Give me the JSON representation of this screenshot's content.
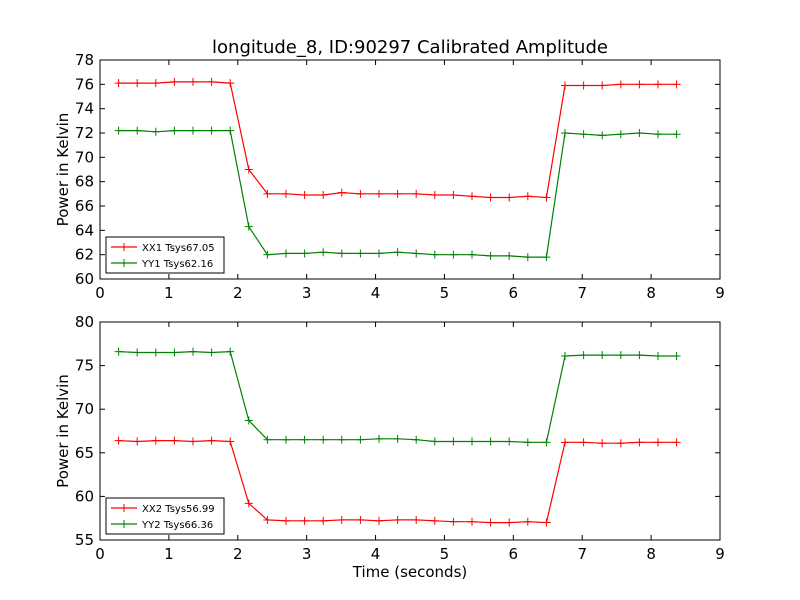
{
  "figure": {
    "title": "longitude_8, ID:90297 Calibrated Amplitude"
  },
  "chart_data": [
    {
      "type": "line",
      "title": "longitude_8, ID:90297 Calibrated Amplitude",
      "xlabel": "",
      "ylabel": "Power in Kelvin",
      "xlim": [
        0,
        9
      ],
      "ylim": [
        60,
        78
      ],
      "xticks": [
        0,
        1,
        2,
        3,
        4,
        5,
        6,
        7,
        8,
        9
      ],
      "yticks": [
        60,
        62,
        64,
        66,
        68,
        70,
        72,
        74,
        76,
        78
      ],
      "grid": false,
      "legend_position": "lower-left",
      "x": [
        0.27,
        0.54,
        0.81,
        1.08,
        1.35,
        1.62,
        1.89,
        2.16,
        2.43,
        2.7,
        2.97,
        3.24,
        3.51,
        3.78,
        4.05,
        4.32,
        4.59,
        4.86,
        5.13,
        5.4,
        5.67,
        5.94,
        6.21,
        6.48,
        6.75,
        7.02,
        7.29,
        7.56,
        7.83,
        8.1,
        8.37
      ],
      "series": [
        {
          "name": "XX1 Tsys67.05",
          "color": "#ff0000",
          "values": [
            76.1,
            76.1,
            76.1,
            76.2,
            76.2,
            76.2,
            76.1,
            69.0,
            67.0,
            67.0,
            66.9,
            66.9,
            67.1,
            67.0,
            67.0,
            67.0,
            67.0,
            66.9,
            66.9,
            66.8,
            66.7,
            66.7,
            66.8,
            66.7,
            75.9,
            75.9,
            75.9,
            76.0,
            76.0,
            76.0,
            76.0
          ]
        },
        {
          "name": "YY1 Tsys62.16",
          "color": "#008000",
          "values": [
            72.2,
            72.2,
            72.1,
            72.2,
            72.2,
            72.2,
            72.2,
            64.3,
            62.0,
            62.1,
            62.1,
            62.2,
            62.1,
            62.1,
            62.1,
            62.2,
            62.1,
            62.0,
            62.0,
            62.0,
            61.9,
            61.9,
            61.8,
            61.8,
            72.0,
            71.9,
            71.8,
            71.9,
            72.0,
            71.9,
            71.9
          ]
        }
      ]
    },
    {
      "type": "line",
      "title": "",
      "xlabel": "Time (seconds)",
      "ylabel": "Power in Kelvin",
      "xlim": [
        0,
        9
      ],
      "ylim": [
        55,
        80
      ],
      "xticks": [
        0,
        1,
        2,
        3,
        4,
        5,
        6,
        7,
        8,
        9
      ],
      "yticks": [
        55,
        60,
        65,
        70,
        75,
        80
      ],
      "grid": false,
      "legend_position": "lower-left",
      "x": [
        0.27,
        0.54,
        0.81,
        1.08,
        1.35,
        1.62,
        1.89,
        2.16,
        2.43,
        2.7,
        2.97,
        3.24,
        3.51,
        3.78,
        4.05,
        4.32,
        4.59,
        4.86,
        5.13,
        5.4,
        5.67,
        5.94,
        6.21,
        6.48,
        6.75,
        7.02,
        7.29,
        7.56,
        7.83,
        8.1,
        8.37
      ],
      "series": [
        {
          "name": "XX2 Tsys56.99",
          "color": "#ff0000",
          "values": [
            66.4,
            66.3,
            66.4,
            66.4,
            66.3,
            66.4,
            66.3,
            59.2,
            57.3,
            57.2,
            57.2,
            57.2,
            57.3,
            57.3,
            57.2,
            57.3,
            57.3,
            57.2,
            57.1,
            57.1,
            57.0,
            57.0,
            57.1,
            57.0,
            66.2,
            66.2,
            66.1,
            66.1,
            66.2,
            66.2,
            66.2
          ]
        },
        {
          "name": "YY2 Tsys66.36",
          "color": "#008000",
          "values": [
            76.6,
            76.5,
            76.5,
            76.5,
            76.6,
            76.5,
            76.6,
            68.7,
            66.5,
            66.5,
            66.5,
            66.5,
            66.5,
            66.5,
            66.6,
            66.6,
            66.5,
            66.3,
            66.3,
            66.3,
            66.3,
            66.3,
            66.2,
            66.2,
            76.1,
            76.2,
            76.2,
            76.2,
            76.2,
            76.1,
            76.1
          ]
        }
      ]
    }
  ]
}
